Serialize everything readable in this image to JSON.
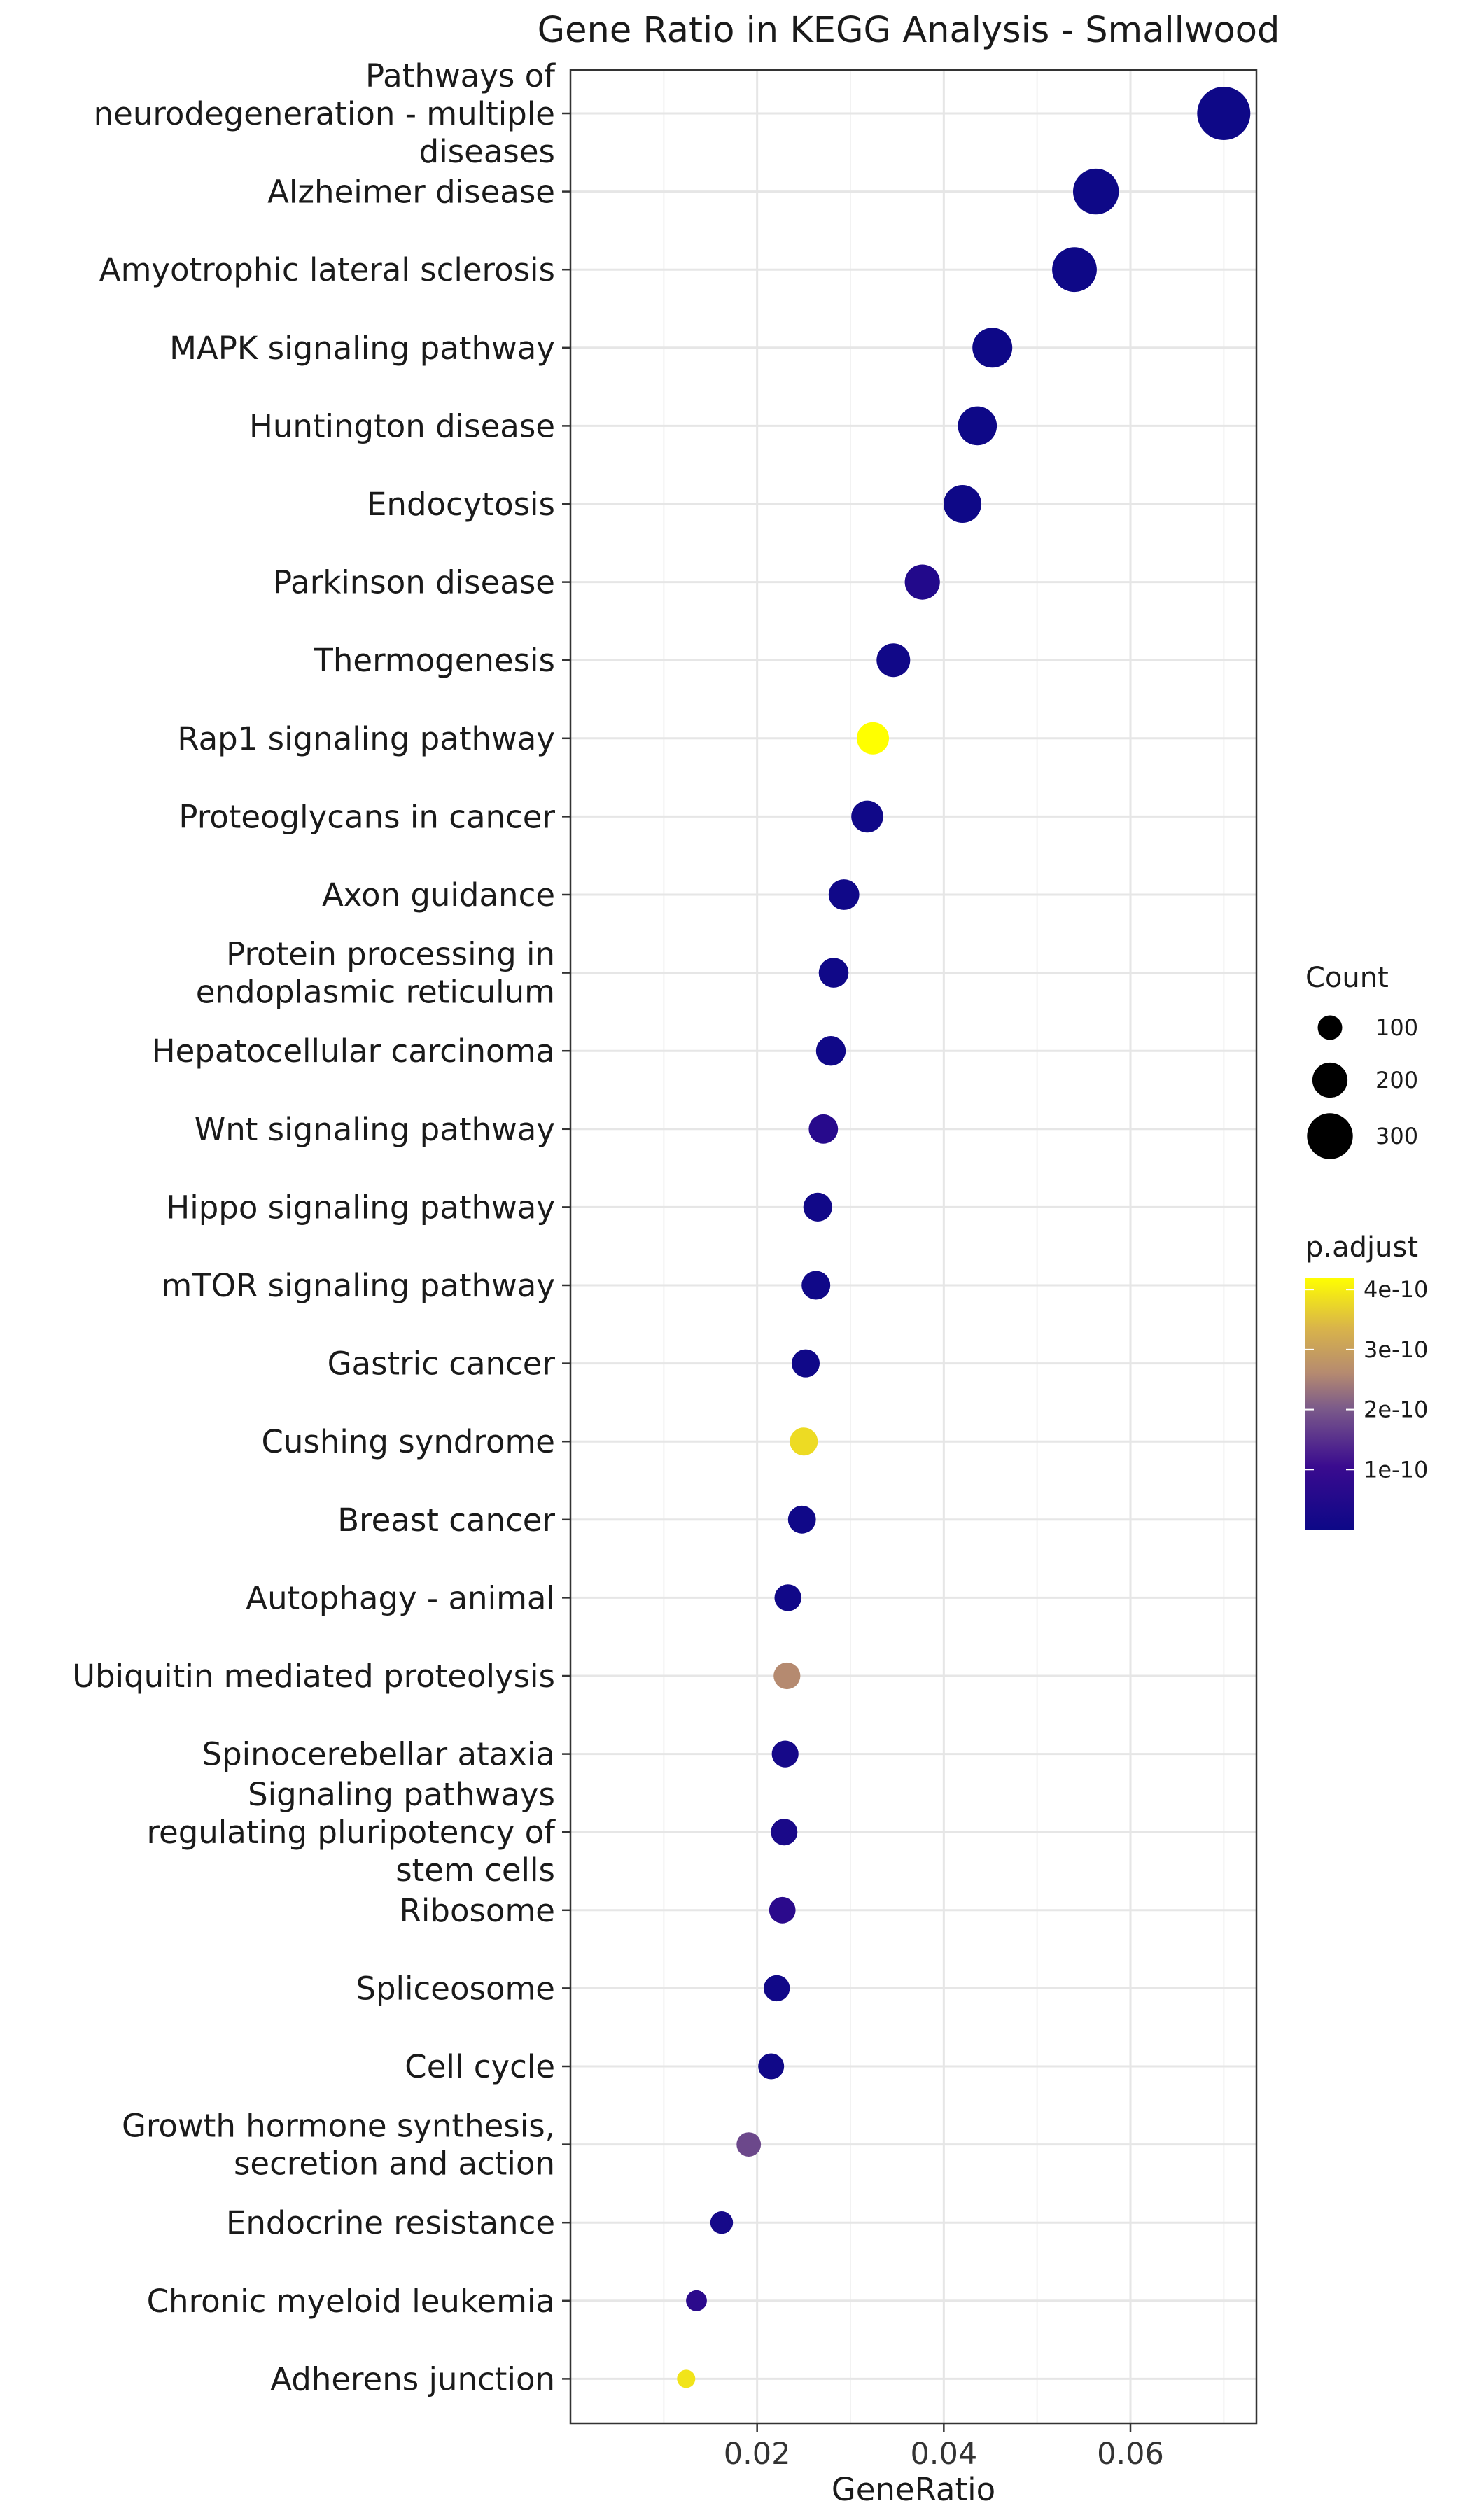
{
  "chart_data": {
    "type": "scatter",
    "title": "Gene Ratio in KEGG Analysis - Smallwood",
    "xlabel": "GeneRatio",
    "ylabel": "",
    "xlim": [
      0.0,
      0.0735
    ],
    "xticks": [
      0.02,
      0.04,
      0.06
    ],
    "xtick_labels": [
      "0.02",
      "0.04",
      "0.06"
    ],
    "grid": true,
    "legend_position": "right",
    "size_legend": {
      "title": "Count",
      "values": [
        100,
        200,
        300
      ],
      "labels": [
        "100",
        "200",
        "300"
      ]
    },
    "color_legend": {
      "title": "p.adjust",
      "range": [
        0,
        4.2e-10
      ],
      "ticks": [
        1e-10,
        2e-10,
        3e-10,
        4e-10
      ],
      "tick_labels": [
        "1e-10",
        "2e-10",
        "3e-10",
        "4e-10"
      ],
      "colors": [
        "#0d0887",
        "#3a0b8f",
        "#7b5a8a",
        "#b58a70",
        "#d9b44a",
        "#ffff00"
      ]
    },
    "categories": [
      [
        "Pathways of",
        "neurodegeneration - multiple",
        "diseases"
      ],
      [
        "Alzheimer disease"
      ],
      [
        "Amyotrophic lateral sclerosis"
      ],
      [
        "MAPK signaling pathway"
      ],
      [
        "Huntington disease"
      ],
      [
        "Endocytosis"
      ],
      [
        "Parkinson disease"
      ],
      [
        "Thermogenesis"
      ],
      [
        "Rap1 signaling pathway"
      ],
      [
        "Proteoglycans in cancer"
      ],
      [
        "Axon guidance"
      ],
      [
        "Protein processing in",
        "endoplasmic reticulum"
      ],
      [
        "Hepatocellular carcinoma"
      ],
      [
        "Wnt signaling pathway"
      ],
      [
        "Hippo signaling pathway"
      ],
      [
        "mTOR signaling pathway"
      ],
      [
        "Gastric cancer"
      ],
      [
        "Cushing syndrome"
      ],
      [
        "Breast cancer"
      ],
      [
        "Autophagy - animal"
      ],
      [
        "Ubiquitin mediated proteolysis"
      ],
      [
        "Spinocerebellar ataxia"
      ],
      [
        "Signaling pathways",
        "regulating pluripotency of",
        "stem cells"
      ],
      [
        "Ribosome"
      ],
      [
        "Spliceosome"
      ],
      [
        "Cell cycle"
      ],
      [
        "Growth hormone synthesis,",
        "secretion and action"
      ],
      [
        "Endocrine resistance"
      ],
      [
        "Chronic myeloid leukemia"
      ],
      [
        "Adherens junction"
      ]
    ],
    "gene_ratio": [
      0.07,
      0.0563,
      0.054,
      0.0452,
      0.0436,
      0.042,
      0.0377,
      0.0346,
      0.0324,
      0.0318,
      0.0293,
      0.0282,
      0.0279,
      0.0271,
      0.0265,
      0.0263,
      0.0252,
      0.025,
      0.0248,
      0.0233,
      0.0232,
      0.023,
      0.0229,
      0.0227,
      0.0221,
      0.0215,
      0.0191,
      0.0162,
      0.0135,
      0.0124
    ],
    "count": [
      370,
      300,
      290,
      245,
      235,
      225,
      200,
      185,
      172,
      170,
      157,
      150,
      148,
      144,
      140,
      139,
      133,
      132,
      131,
      122,
      121,
      120,
      119,
      118,
      115,
      112,
      98,
      82,
      65,
      40
    ],
    "p_adjust": [
      2e-12,
      2e-12,
      2e-12,
      2e-12,
      2e-12,
      2e-12,
      5e-11,
      1e-11,
      4.2e-10,
      8e-12,
      8e-12,
      8e-12,
      8e-12,
      6e-11,
      1e-11,
      8e-12,
      8e-12,
      3.8e-10,
      8e-12,
      1e-11,
      2.6e-10,
      2e-11,
      3e-11,
      7e-11,
      1e-11,
      8e-12,
      1.8e-10,
      2e-11,
      7e-11,
      3.9e-10
    ]
  }
}
